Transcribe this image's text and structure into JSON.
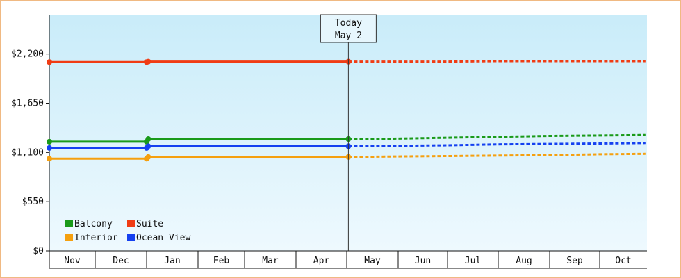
{
  "chart_data": {
    "type": "line",
    "title": "",
    "xlabel": "",
    "ylabel": "",
    "categories": [
      "Nov",
      "Dec",
      "Jan",
      "Feb",
      "Mar",
      "Apr",
      "May",
      "Jun",
      "Jul",
      "Aug",
      "Sep",
      "Oct"
    ],
    "y_ticks": [
      "$0",
      "$550",
      "$1,100",
      "$1,650",
      "$2,200"
    ],
    "ylim": [
      0,
      2640
    ],
    "grid": false,
    "legend_position": "bottom-left",
    "today_marker": {
      "line1": "Today",
      "line2": "May 2",
      "date": "May 2"
    },
    "series": [
      {
        "name": "Balcony",
        "color": "#1a9a1a",
        "solid": [
          [
            "Nov 1",
            1220
          ],
          [
            "Jan 1",
            1220
          ],
          [
            "Jan 2",
            1250
          ],
          [
            "May 2",
            1250
          ]
        ],
        "markers": [
          [
            "Nov 1",
            1220
          ],
          [
            "Jan 1",
            1220
          ],
          [
            "Jan 2",
            1250
          ],
          [
            "May 2",
            1250
          ]
        ],
        "projection": [
          [
            "May 2",
            1250
          ],
          [
            "Jun 1",
            1255
          ],
          [
            "Jul 1",
            1265
          ],
          [
            "Aug 1",
            1275
          ],
          [
            "Sep 1",
            1285
          ],
          [
            "Oct 1",
            1290
          ],
          [
            "Oct 31",
            1295
          ]
        ]
      },
      {
        "name": "Suite",
        "color": "#f03c14",
        "solid": [
          [
            "Nov 1",
            2110
          ],
          [
            "Jan 1",
            2110
          ],
          [
            "Jan 2",
            2115
          ],
          [
            "May 2",
            2115
          ]
        ],
        "markers": [
          [
            "Nov 1",
            2110
          ],
          [
            "Jan 1",
            2110
          ],
          [
            "Jan 2",
            2115
          ],
          [
            "May 2",
            2115
          ]
        ],
        "projection": [
          [
            "May 2",
            2115
          ],
          [
            "Jul 1",
            2115
          ],
          [
            "Aug 1",
            2120
          ],
          [
            "Oct 31",
            2120
          ]
        ]
      },
      {
        "name": "Interior",
        "color": "#f5a00f",
        "solid": [
          [
            "Nov 1",
            1030
          ],
          [
            "Jan 1",
            1030
          ],
          [
            "Jan 2",
            1050
          ],
          [
            "May 2",
            1050
          ]
        ],
        "markers": [
          [
            "Nov 1",
            1030
          ],
          [
            "Jan 1",
            1030
          ],
          [
            "Jan 2",
            1050
          ],
          [
            "May 2",
            1050
          ]
        ],
        "projection": [
          [
            "May 2",
            1050
          ],
          [
            "Jun 1",
            1055
          ],
          [
            "Jul 1",
            1060
          ],
          [
            "Aug 1",
            1065
          ],
          [
            "Sep 1",
            1070
          ],
          [
            "Oct 1",
            1080
          ],
          [
            "Oct 31",
            1085
          ]
        ]
      },
      {
        "name": "Ocean View",
        "color": "#1440f0",
        "solid": [
          [
            "Nov 1",
            1150
          ],
          [
            "Jan 1",
            1150
          ],
          [
            "Jan 2",
            1170
          ],
          [
            "May 2",
            1170
          ]
        ],
        "markers": [
          [
            "Nov 1",
            1150
          ],
          [
            "Jan 1",
            1150
          ],
          [
            "Jan 2",
            1170
          ],
          [
            "May 2",
            1170
          ]
        ],
        "projection": [
          [
            "May 2",
            1170
          ],
          [
            "Jun 1",
            1175
          ],
          [
            "Jul 1",
            1180
          ],
          [
            "Aug 1",
            1190
          ],
          [
            "Sep 1",
            1195
          ],
          [
            "Oct 1",
            1200
          ],
          [
            "Oct 31",
            1205
          ]
        ]
      }
    ]
  },
  "legend_rows": [
    [
      "Balcony",
      "Suite"
    ],
    [
      "Interior",
      "Ocean View"
    ]
  ]
}
